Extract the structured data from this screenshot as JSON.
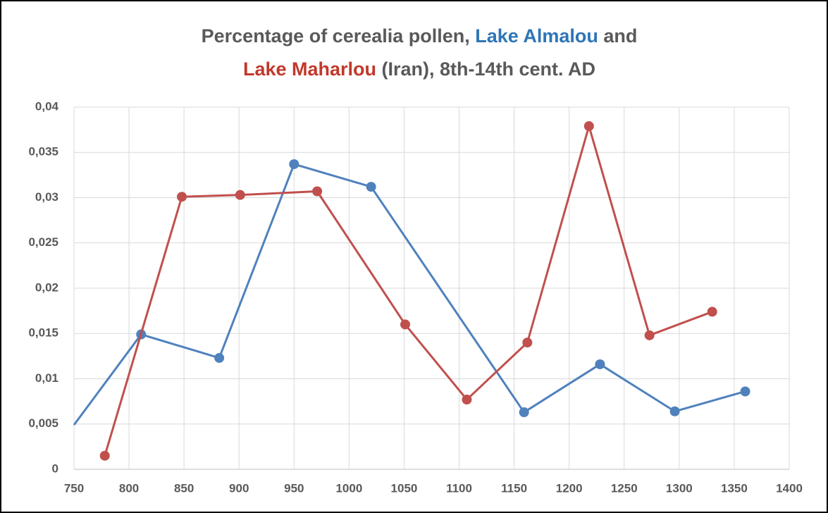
{
  "chart_data": {
    "type": "line",
    "title_lines": [
      [
        {
          "text": "Percentage of cerealia pollen, ",
          "color": "#595959"
        },
        {
          "text": "Lake Almalou",
          "color": "#2e75b6"
        },
        {
          "text": " and",
          "color": "#595959"
        }
      ],
      [
        {
          "text": "Lake Maharlou",
          "color": "#c0392b"
        },
        {
          "text": " (Iran), 8th-14th cent. AD",
          "color": "#595959"
        }
      ]
    ],
    "series": [
      {
        "color": "#4f81bd",
        "x": [
          750,
          811,
          882,
          950,
          1020,
          1159,
          1228,
          1296,
          1360
        ],
        "values": [
          0.0049,
          0.0149,
          0.0123,
          0.0337,
          0.0312,
          0.0063,
          0.0116,
          0.0064,
          0.0086
        ]
      },
      {
        "color": "#c0504d",
        "x": [
          778,
          848,
          901,
          971,
          1051,
          1107,
          1162,
          1218,
          1273,
          1330
        ],
        "values": [
          0.0015,
          0.0301,
          0.0303,
          0.0307,
          0.016,
          0.0077,
          0.014,
          0.0379,
          0.0148,
          0.0174
        ]
      }
    ],
    "xlim": [
      750,
      1400
    ],
    "xticks": [
      750,
      800,
      850,
      900,
      950,
      1000,
      1050,
      1100,
      1150,
      1200,
      1250,
      1300,
      1350,
      1400
    ],
    "ylim": [
      0,
      0.04
    ],
    "yticks": [
      0,
      {
        "value": 0.005,
        "label": "0,005"
      },
      {
        "value": 0.01,
        "label": "0,01"
      },
      {
        "value": 0.015,
        "label": "0,015"
      },
      {
        "value": 0.02,
        "label": "0,02"
      },
      {
        "value": 0.025,
        "label": "0,025"
      },
      {
        "value": 0.03,
        "label": "0,03"
      },
      {
        "value": 0.035,
        "label": "0,035"
      },
      {
        "value": 0.04,
        "label": "0,04"
      }
    ],
    "grid": true
  }
}
